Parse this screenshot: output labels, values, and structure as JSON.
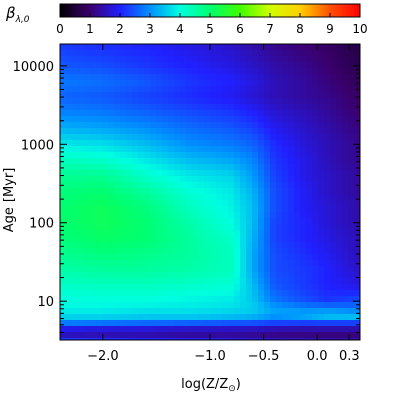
{
  "chart_data": {
    "type": "heatmap",
    "colorbar": {
      "label": "β",
      "label_subscript": "λ,0",
      "range": [
        0,
        10
      ],
      "ticks": [
        "0",
        "1",
        "2",
        "3",
        "4",
        "5",
        "6",
        "7",
        "8",
        "9",
        "10"
      ],
      "colormap": [
        "#000000",
        "#3a006e",
        "#2020ff",
        "#0090ff",
        "#00ffe0",
        "#00ff70",
        "#40ff00",
        "#d0ff00",
        "#ffd000",
        "#ff5000",
        "#ff0000"
      ]
    },
    "xaxis": {
      "label": "log(Z/Z",
      "label_subscript": "⊙",
      "label_suffix": ")",
      "range": [
        -2.4,
        0.4
      ],
      "ticks": [
        {
          "value": -2.0,
          "label": "−2.0"
        },
        {
          "value": -1.0,
          "label": "−1.0"
        },
        {
          "value": -0.5,
          "label": "−0.5"
        },
        {
          "value": 0.0,
          "label": "0.0"
        },
        {
          "value": 0.3,
          "label": "0.3"
        }
      ]
    },
    "yaxis": {
      "label": "Age",
      "label_unit": "[Myr]",
      "scale": "log",
      "range": [
        3.2,
        19000
      ],
      "ticks": [
        {
          "value": 10,
          "label": "10"
        },
        {
          "value": 100,
          "label": "100"
        },
        {
          "value": 1000,
          "label": "1000"
        },
        {
          "value": 10000,
          "label": "10000"
        }
      ]
    },
    "value_grid": {
      "note_x_logZ": [
        -2.4,
        -2.0,
        -1.6,
        -1.2,
        -0.8,
        -0.6,
        -0.4,
        -0.1,
        0.1,
        0.4
      ],
      "log_age": [
        0.5,
        0.6,
        0.7,
        0.8,
        0.9,
        1.0,
        1.2,
        1.4,
        1.6,
        1.8,
        2.0,
        2.2,
        2.4,
        2.6,
        2.8,
        3.0,
        3.2,
        3.4,
        3.6,
        3.8,
        4.0,
        4.28
      ],
      "values": [
        [
          2.2,
          2.1,
          2.0,
          1.9,
          1.8,
          1.7,
          1.6,
          1.5,
          1.4,
          1.4
        ],
        [
          1.3,
          1.2,
          1.2,
          1.1,
          1.1,
          1.1,
          1.0,
          1.0,
          1.0,
          1.0
        ],
        [
          2.6,
          2.5,
          2.4,
          2.3,
          2.2,
          2.2,
          2.1,
          2.0,
          2.0,
          2.0
        ],
        [
          3.6,
          3.6,
          3.5,
          3.5,
          3.4,
          3.3,
          3.0,
          3.2,
          3.4,
          3.4
        ],
        [
          3.9,
          3.9,
          3.8,
          3.8,
          3.7,
          3.6,
          3.2,
          3.0,
          3.0,
          2.8
        ],
        [
          4.0,
          4.0,
          4.0,
          3.9,
          3.8,
          3.5,
          2.8,
          2.4,
          2.2,
          2.4
        ],
        [
          4.2,
          4.3,
          4.3,
          4.2,
          4.1,
          3.4,
          2.5,
          2.2,
          2.0,
          1.8
        ],
        [
          4.5,
          4.6,
          4.6,
          4.5,
          4.3,
          3.2,
          2.4,
          2.2,
          2.0,
          1.6
        ],
        [
          4.7,
          4.9,
          4.8,
          4.6,
          4.3,
          3.2,
          2.4,
          2.1,
          1.9,
          1.5
        ],
        [
          4.9,
          5.1,
          5.0,
          4.6,
          4.2,
          3.3,
          2.3,
          2.0,
          1.8,
          1.5
        ],
        [
          5.0,
          5.2,
          5.0,
          4.5,
          4.0,
          3.4,
          2.3,
          2.0,
          1.7,
          1.4
        ],
        [
          5.0,
          5.2,
          4.9,
          4.3,
          3.9,
          3.4,
          2.4,
          1.9,
          1.7,
          1.4
        ],
        [
          4.9,
          5.0,
          4.6,
          4.1,
          3.8,
          3.3,
          2.4,
          1.9,
          1.6,
          1.3
        ],
        [
          4.7,
          4.7,
          4.2,
          3.8,
          3.6,
          3.1,
          2.3,
          1.8,
          1.6,
          1.3
        ],
        [
          4.3,
          4.2,
          3.8,
          3.4,
          3.2,
          2.9,
          2.2,
          1.8,
          1.5,
          1.2
        ],
        [
          3.8,
          3.7,
          3.4,
          3.0,
          2.8,
          2.6,
          2.1,
          1.7,
          1.5,
          1.2
        ],
        [
          3.3,
          3.2,
          3.0,
          2.7,
          2.5,
          2.3,
          1.9,
          1.6,
          1.4,
          1.1
        ],
        [
          2.9,
          2.8,
          2.6,
          2.4,
          2.2,
          2.0,
          1.7,
          1.5,
          1.3,
          1.0
        ],
        [
          2.6,
          2.5,
          2.3,
          2.1,
          1.9,
          1.7,
          1.5,
          1.3,
          1.2,
          0.9
        ],
        [
          2.8,
          2.7,
          2.5,
          2.2,
          2.0,
          1.8,
          1.5,
          1.3,
          1.1,
          0.8
        ],
        [
          2.5,
          2.4,
          2.2,
          2.0,
          1.8,
          1.6,
          1.4,
          1.2,
          1.0,
          0.7
        ],
        [
          2.2,
          2.1,
          2.0,
          1.8,
          1.6,
          1.4,
          1.2,
          1.0,
          0.9,
          0.6
        ]
      ]
    }
  }
}
